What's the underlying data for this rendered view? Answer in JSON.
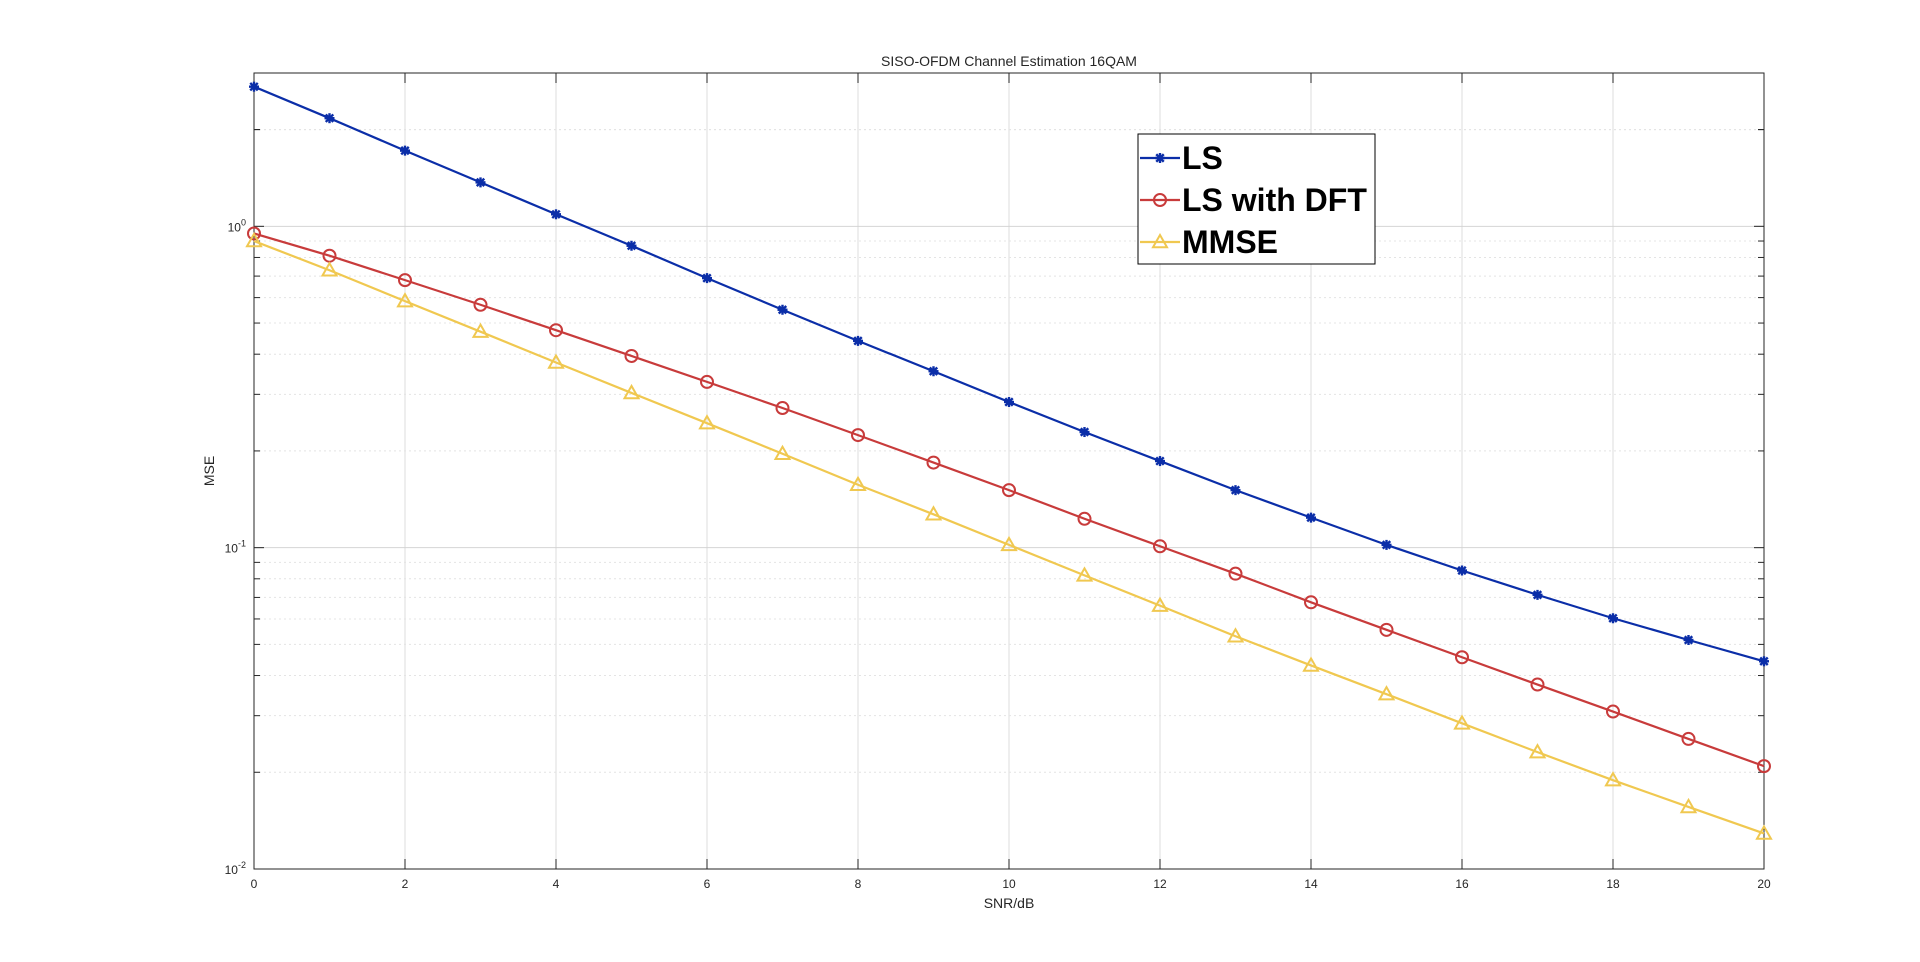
{
  "chart_data": {
    "type": "line",
    "title": "SISO-OFDM Channel Estimation 16QAM",
    "xlabel": "SNR/dB",
    "ylabel": "MSE",
    "xlim": [
      0,
      20
    ],
    "ylim": [
      0.01,
      3.0
    ],
    "yscale": "log",
    "grid": true,
    "legend_position": "top-right",
    "x": [
      0,
      1,
      2,
      3,
      4,
      5,
      6,
      7,
      8,
      9,
      10,
      11,
      12,
      13,
      14,
      15,
      16,
      17,
      18,
      19,
      20
    ],
    "x_ticks": [
      0,
      2,
      4,
      6,
      8,
      10,
      12,
      14,
      16,
      18,
      20
    ],
    "x_tick_labels": [
      "0",
      "2",
      "4",
      "6",
      "8",
      "10",
      "12",
      "14",
      "16",
      "18",
      "20"
    ],
    "y_ticks": [
      {
        "value": 1,
        "base": "10",
        "exp": "0"
      },
      {
        "value": 0.1,
        "base": "10",
        "exp": "-1"
      },
      {
        "value": 0.01,
        "base": "10",
        "exp": "-2"
      }
    ],
    "series": [
      {
        "name": "LS",
        "color": "#0b2ea8",
        "marker": "star",
        "values": [
          2.72,
          2.17,
          1.72,
          1.37,
          1.09,
          0.87,
          0.69,
          0.55,
          0.44,
          0.354,
          0.284,
          0.229,
          0.186,
          0.151,
          0.124,
          0.102,
          0.0849,
          0.0713,
          0.0603,
          0.0516,
          0.0443
        ]
      },
      {
        "name": "LS with DFT",
        "color": "#c83b3b",
        "marker": "circle",
        "values": [
          0.95,
          0.81,
          0.68,
          0.57,
          0.475,
          0.395,
          0.328,
          0.272,
          0.224,
          0.184,
          0.151,
          0.123,
          0.101,
          0.083,
          0.0676,
          0.0555,
          0.0456,
          0.0375,
          0.0309,
          0.0254,
          0.0209
        ]
      },
      {
        "name": "MMSE",
        "color": "#f0c850",
        "marker": "triangle",
        "values": [
          0.9,
          0.73,
          0.585,
          0.47,
          0.377,
          0.303,
          0.244,
          0.196,
          0.157,
          0.127,
          0.102,
          0.082,
          0.066,
          0.053,
          0.043,
          0.035,
          0.0284,
          0.0231,
          0.0189,
          0.0156,
          0.0129
        ]
      }
    ]
  }
}
